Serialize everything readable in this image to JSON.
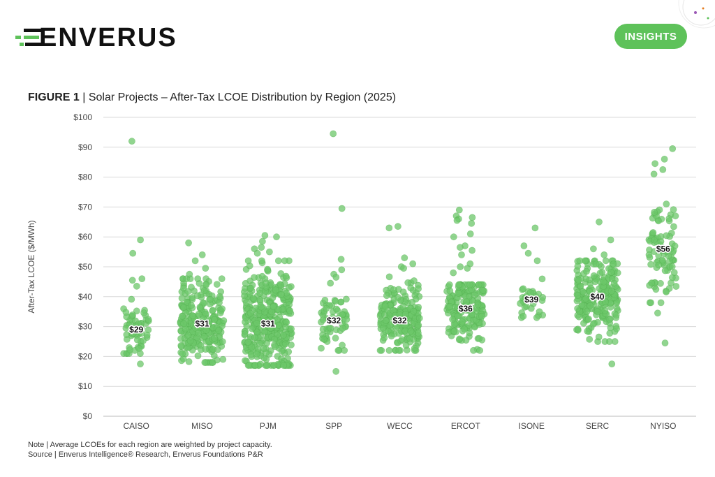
{
  "brand": {
    "name": "ENVERUS",
    "badge": "INSIGHTS",
    "accent": "#5ec25a"
  },
  "figure": {
    "label": "FIGURE 1",
    "separator": " | ",
    "title": "Solar Projects – After-Tax LCOE Distribution by Region (2025)"
  },
  "notes": {
    "note": "Note | Average LCOEs for each region are weighted by project capacity.",
    "source": "Source | Enverus Intelligence® Research, Enverus Foundations P&R"
  },
  "chart_data": {
    "type": "scatter",
    "subtype": "strip",
    "ylabel": "After-Tax LCOE ($/MWh)",
    "ylim": [
      0,
      100
    ],
    "yticks": [
      "$0",
      "$10",
      "$20",
      "$30",
      "$40",
      "$50",
      "$60",
      "$70",
      "$80",
      "$90",
      "$100"
    ],
    "grid": true,
    "point_color": "#6cc76a",
    "categories": [
      {
        "name": "CAISO",
        "avg_label": "$29",
        "avg": 29,
        "n": 60,
        "low": 21,
        "high": 41,
        "outliers": [
          92,
          59,
          54.5,
          46,
          45.5,
          43.5,
          17.5
        ]
      },
      {
        "name": "MISO",
        "avg_label": "$31",
        "avg": 31,
        "n": 240,
        "low": 18,
        "high": 46,
        "outliers": [
          58,
          54,
          52,
          49.5,
          47.5,
          42
        ]
      },
      {
        "name": "PJM",
        "avg_label": "$31",
        "avg": 31,
        "n": 360,
        "low": 17,
        "high": 52,
        "outliers": [
          60.5,
          60,
          58.5,
          56.5,
          56,
          55,
          54.5
        ]
      },
      {
        "name": "SPP",
        "avg_label": "$32",
        "avg": 32,
        "n": 60,
        "low": 22,
        "high": 40,
        "outliers": [
          94.5,
          69.5,
          52.5,
          49,
          47.5,
          46.5,
          44.5,
          15
        ]
      },
      {
        "name": "WECC",
        "avg_label": "$32",
        "avg": 32,
        "n": 200,
        "low": 22,
        "high": 47,
        "outliers": [
          63.5,
          63,
          53,
          51,
          50,
          49.5
        ]
      },
      {
        "name": "ERCOT",
        "avg_label": "$36",
        "avg": 36,
        "n": 180,
        "low": 22,
        "high": 44,
        "outliers": [
          69,
          67,
          66.5,
          66,
          65.5,
          64.5,
          61,
          60,
          57,
          56.5,
          55.5,
          54,
          51,
          50,
          49.5,
          48,
          22
        ]
      },
      {
        "name": "ISONE",
        "avg_label": "$39",
        "avg": 39,
        "n": 30,
        "low": 33,
        "high": 46,
        "outliers": [
          63,
          57,
          54.5,
          52
        ]
      },
      {
        "name": "SERC",
        "avg_label": "$40",
        "avg": 40,
        "n": 220,
        "low": 25,
        "high": 52,
        "outliers": [
          65,
          59,
          56,
          54,
          17.5
        ]
      },
      {
        "name": "NYISO",
        "avg_label": "$56",
        "avg": 56,
        "n": 90,
        "low": 38,
        "high": 71,
        "outliers": [
          89.5,
          86,
          84.5,
          82.5,
          81,
          24.5,
          34.5
        ]
      }
    ]
  }
}
